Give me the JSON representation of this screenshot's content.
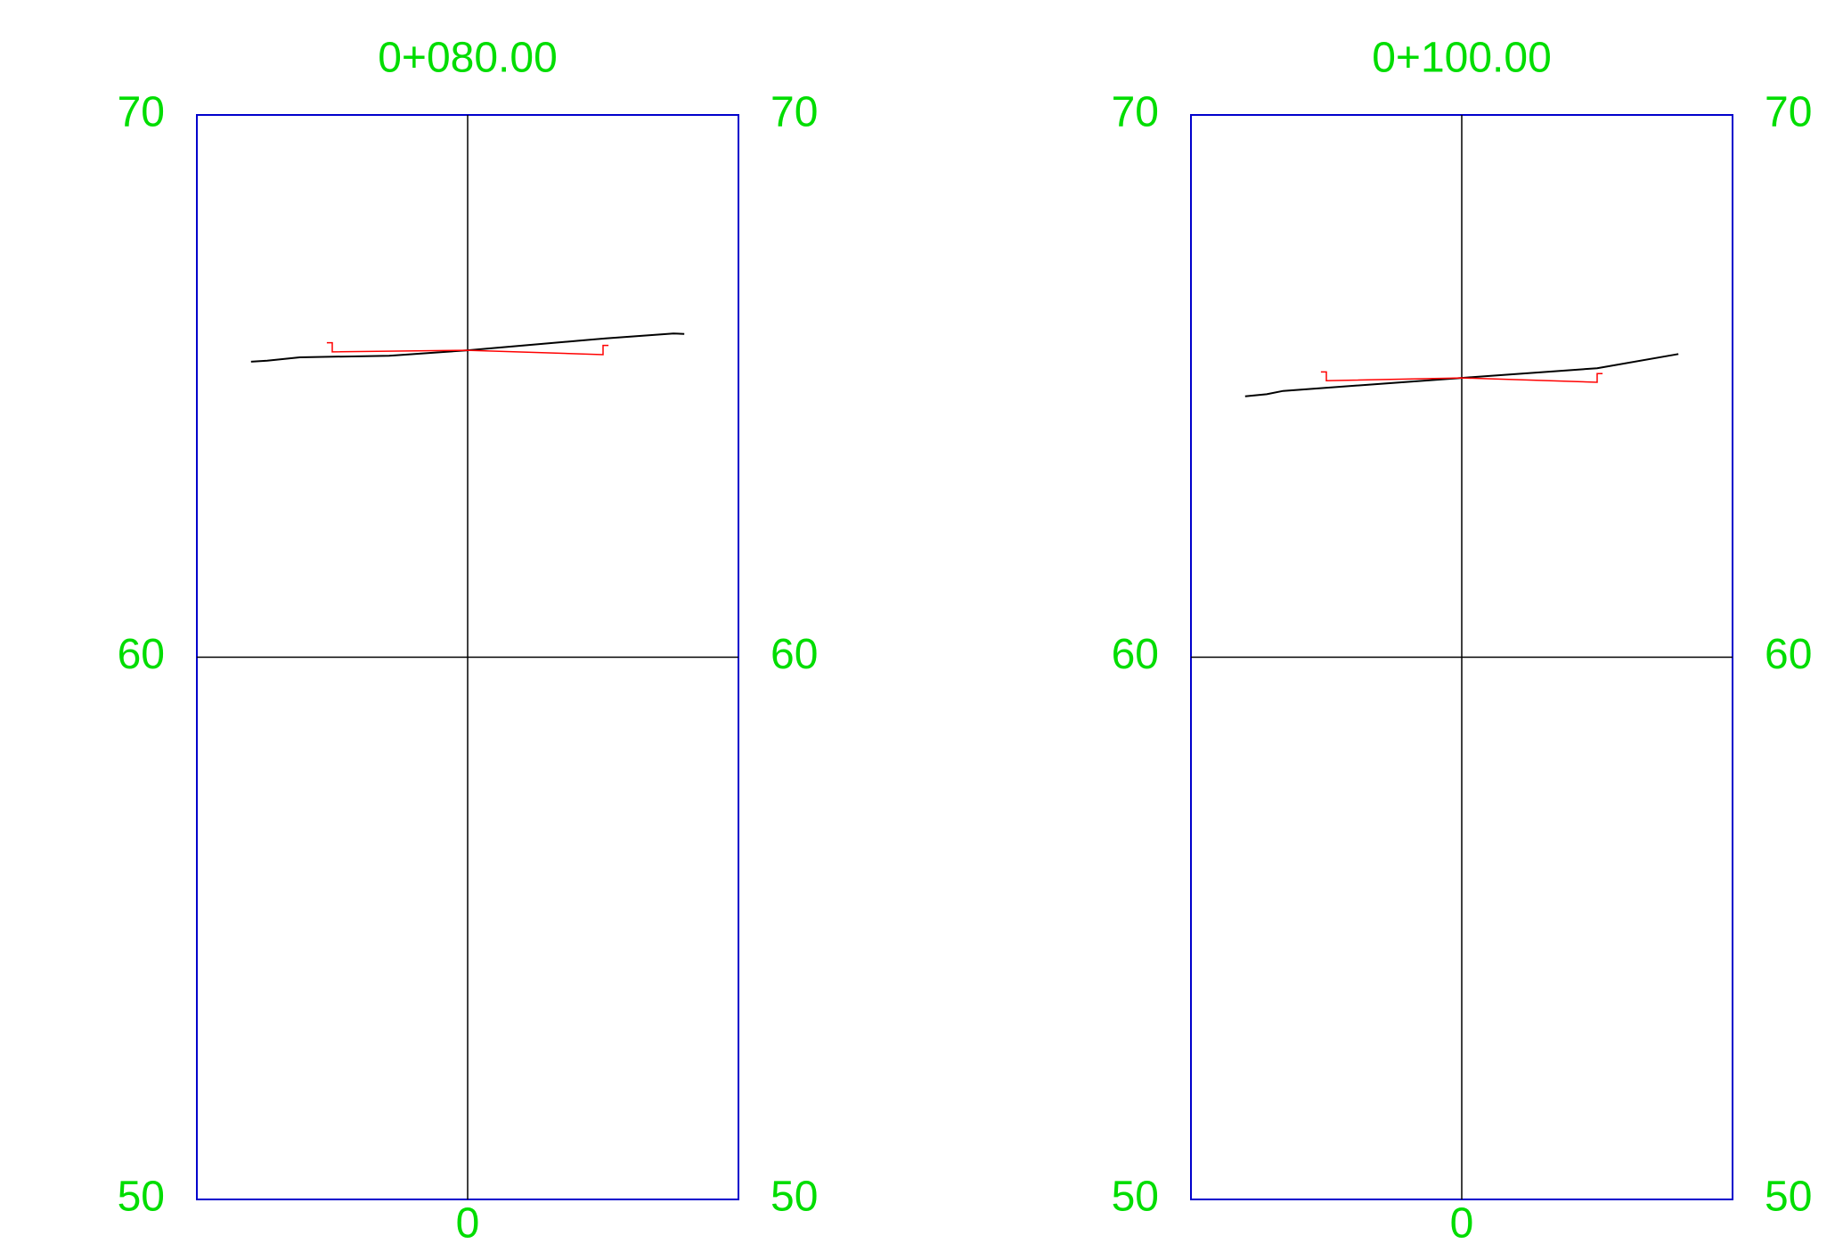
{
  "colors": {
    "label": "#00dd00",
    "frame": "#0000cc",
    "grid": "#000000",
    "ground": "#000000",
    "design": "#ff0000",
    "background": "#ffffff"
  },
  "sections": [
    {
      "station": "0+080.00",
      "offset_label": "0",
      "elev_labels": [
        "70",
        "60",
        "50"
      ],
      "elev_top": 70,
      "elev_mid": 60,
      "elev_bottom": 50,
      "offset_range": [
        -10,
        10
      ],
      "ground_line": [
        [
          -8.0,
          65.45
        ],
        [
          -7.4,
          65.47
        ],
        [
          -6.2,
          65.53
        ],
        [
          -2.9,
          65.56
        ],
        [
          0.0,
          65.66
        ],
        [
          5.1,
          65.88
        ],
        [
          7.6,
          65.97
        ],
        [
          8.0,
          65.96
        ]
      ],
      "design_line": [
        [
          -5.2,
          65.8
        ],
        [
          -5.0,
          65.8
        ],
        [
          -5.0,
          65.63
        ],
        [
          0.0,
          65.66
        ],
        [
          5.0,
          65.58
        ],
        [
          5.0,
          65.75
        ],
        [
          5.2,
          65.75
        ]
      ]
    },
    {
      "station": "0+100.00",
      "offset_label": "0",
      "elev_labels": [
        "70",
        "60",
        "50"
      ],
      "elev_top": 70,
      "elev_mid": 60,
      "elev_bottom": 50,
      "offset_range": [
        -10,
        10
      ],
      "ground_line": [
        [
          -8.0,
          64.81
        ],
        [
          -7.2,
          64.85
        ],
        [
          -6.6,
          64.91
        ],
        [
          0.0,
          65.15
        ],
        [
          5.0,
          65.33
        ],
        [
          8.0,
          65.59
        ]
      ],
      "design_line": [
        [
          -5.2,
          65.26
        ],
        [
          -5.0,
          65.26
        ],
        [
          -5.0,
          65.1
        ],
        [
          0.0,
          65.15
        ],
        [
          5.0,
          65.07
        ],
        [
          5.0,
          65.23
        ],
        [
          5.2,
          65.23
        ]
      ]
    }
  ]
}
